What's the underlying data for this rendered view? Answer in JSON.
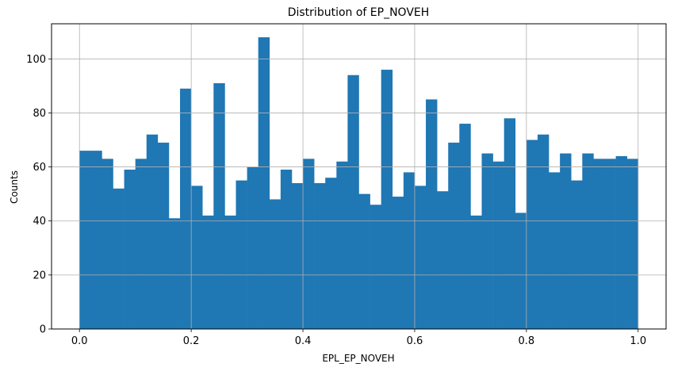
{
  "chart_data": {
    "type": "bar",
    "title": "Distribution of EP_NOVEH",
    "xlabel": "EPL_EP_NOVEH",
    "ylabel": "Counts",
    "xlim": [
      -0.05,
      1.05
    ],
    "ylim": [
      0,
      113
    ],
    "xticks": [
      0.0,
      0.2,
      0.4,
      0.6,
      0.8,
      1.0
    ],
    "xtick_labels": [
      "0.0",
      "0.2",
      "0.4",
      "0.6",
      "0.8",
      "1.0"
    ],
    "yticks": [
      0,
      20,
      40,
      60,
      80,
      100
    ],
    "ytick_labels": [
      "0",
      "20",
      "40",
      "60",
      "80",
      "100"
    ],
    "grid": true,
    "bin_edges_range": [
      0.0,
      1.0
    ],
    "bins": 50,
    "values": [
      66,
      66,
      63,
      52,
      59,
      63,
      72,
      69,
      41,
      89,
      53,
      42,
      91,
      42,
      55,
      60,
      108,
      48,
      59,
      54,
      63,
      54,
      56,
      62,
      94,
      50,
      46,
      96,
      49,
      58,
      53,
      85,
      51,
      69,
      76,
      42,
      65,
      62,
      78,
      43,
      70,
      72,
      58,
      65,
      55,
      65,
      63,
      63,
      64,
      63
    ],
    "bar_color": "#1f77b4"
  }
}
